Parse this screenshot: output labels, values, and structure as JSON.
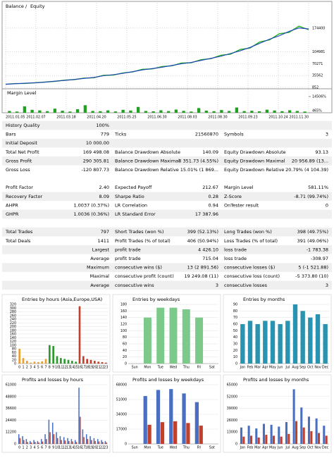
{
  "legend_separator": "/",
  "chart_data": [
    {
      "type": "line",
      "series": [
        {
          "name": "Balance",
          "color": "#1f3fbf",
          "values": [
            10000,
            11500,
            13000,
            14000,
            16000,
            19000,
            21000,
            24000,
            27000,
            30000,
            35000,
            38000,
            42000,
            47000,
            52000,
            56000,
            60000,
            65000,
            70000,
            74000,
            80000,
            86000,
            92000,
            100000,
            108000,
            118000,
            130000,
            142000,
            152000,
            165000,
            175000,
            172000
          ]
        },
        {
          "name": "Equity",
          "color": "#22b022",
          "values": [
            10000,
            12000,
            12500,
            14500,
            16500,
            18500,
            22000,
            23500,
            28000,
            29000,
            36000,
            37000,
            43000,
            46000,
            54000,
            55000,
            62000,
            64000,
            72000,
            73000,
            82000,
            85000,
            95000,
            98000,
            112000,
            116000,
            134000,
            140000,
            158000,
            162000,
            180000,
            170000
          ]
        }
      ],
      "ylim": [
        852,
        228000
      ],
      "yticks": [
        852,
        35562,
        70271,
        104981,
        174400
      ],
      "x_labels": [
        "2011.01.05",
        "2011.02.07",
        "2011.03.18",
        "2011.04.20",
        "2011.05.25",
        "2011.06.30",
        "2011.08.03",
        "2011.08.30",
        "2011.09.23",
        "2011.10.24",
        "2011.11.30"
      ],
      "grid": true
    },
    {
      "type": "bar",
      "title": "Margin Level",
      "color": "#22a022",
      "ylim": [
        465,
        14506
      ],
      "yticks": [
        {
          "value": 14506,
          "label": "14506%"
        },
        {
          "value": 465,
          "label": "465%"
        }
      ],
      "values": [
        2000,
        1500,
        6000,
        3000,
        2500,
        1800,
        4000,
        2200,
        1500,
        3500,
        7000,
        2000,
        1800,
        2500,
        1600,
        3000,
        2400,
        5500,
        2000,
        1700,
        2600,
        1900,
        3200,
        2100,
        1500,
        4500,
        2300,
        1800,
        2800,
        2000,
        5000,
        1900,
        2200,
        1700,
        3100,
        2400,
        1800,
        2600,
        2000,
        1500
      ]
    },
    {
      "type": "bar",
      "title": "Entries by hours (Asia,Europe,USA)",
      "ylim": [
        0,
        320
      ],
      "yticks": [
        0,
        20,
        40,
        60,
        80,
        100,
        120,
        140,
        160,
        180,
        200,
        220,
        240,
        260,
        280,
        300,
        320
      ],
      "categories": [
        "0",
        "1",
        "2",
        "3",
        "4",
        "5",
        "6",
        "7",
        "8",
        "9",
        "10",
        "11",
        "12",
        "13",
        "14",
        "15",
        "16",
        "17",
        "18",
        "19",
        "20",
        "21",
        "22",
        "23"
      ],
      "values": [
        80,
        30,
        15,
        5,
        10,
        8,
        12,
        25,
        100,
        95,
        40,
        30,
        25,
        20,
        15,
        10,
        310,
        40,
        25,
        20,
        15,
        10,
        8,
        5
      ],
      "bar_colors": [
        "#e8a030",
        "#e8a030",
        "#e8a030",
        "#e8a030",
        "#e8a030",
        "#e8a030",
        "#e8a030",
        "#e8a030",
        "#2e9a2e",
        "#2e9a2e",
        "#2e9a2e",
        "#2e9a2e",
        "#2e9a2e",
        "#2e9a2e",
        "#2e9a2e",
        "#2e9a2e",
        "#c0402e",
        "#c0402e",
        "#c0402e",
        "#c0402e",
        "#c0402e",
        "#c0402e",
        "#c0402e",
        "#c0402e"
      ]
    },
    {
      "type": "bar",
      "title": "Entries by weekdays",
      "color": "#7cc98a",
      "ylim": [
        0,
        180
      ],
      "yticks": [
        0,
        20,
        40,
        60,
        80,
        100,
        120,
        140,
        160,
        180
      ],
      "categories": [
        "Sun",
        "Mon",
        "Tue",
        "Wed",
        "Thu",
        "Fri",
        "Sat"
      ],
      "values": [
        0,
        140,
        170,
        170,
        165,
        140,
        0
      ]
    },
    {
      "type": "bar",
      "title": "Entries by months",
      "color": "#2a93b0",
      "ylim": [
        0,
        90
      ],
      "yticks": [
        0,
        10,
        20,
        30,
        40,
        50,
        60,
        70,
        80,
        90
      ],
      "categories": [
        "Jan",
        "Feb",
        "Mar",
        "Apr",
        "May",
        "Jun",
        "Jul",
        "Aug",
        "Sep",
        "Oct",
        "Nov",
        "Dec"
      ],
      "values": [
        60,
        65,
        60,
        65,
        65,
        60,
        65,
        90,
        80,
        70,
        75,
        60
      ]
    },
    {
      "type": "bar",
      "title": "Profits and losses by hours",
      "ylim": [
        0,
        61000
      ],
      "yticks": [
        0,
        12200,
        24400,
        36600,
        48800,
        61000
      ],
      "categories": [
        "0",
        "1",
        "2",
        "3",
        "4",
        "5",
        "6",
        "7",
        "8",
        "9",
        "10",
        "11",
        "12",
        "13",
        "14",
        "15",
        "16",
        "17",
        "18",
        "19",
        "20",
        "21",
        "22",
        "23"
      ],
      "series": [
        {
          "color": "#4a6fc0",
          "values": [
            10000,
            8000,
            5000,
            3000,
            4000,
            3000,
            5000,
            10000,
            25000,
            22000,
            12000,
            8000,
            7000,
            6000,
            5000,
            4000,
            58000,
            15000,
            10000,
            8000,
            6000,
            5000,
            4000,
            3000
          ]
        },
        {
          "color": "#c0402e",
          "values": [
            6000,
            4000,
            2000,
            1500,
            2000,
            1500,
            2500,
            5000,
            12000,
            10000,
            6000,
            4000,
            3500,
            3000,
            2500,
            2000,
            28000,
            7000,
            5000,
            4000,
            3000,
            2500,
            2000,
            1500
          ]
        }
      ]
    },
    {
      "type": "bar",
      "title": "Profits and losses by weekdays",
      "ylim": [
        0,
        68000
      ],
      "yticks": [
        0,
        17000,
        34000,
        51000,
        68000
      ],
      "categories": [
        "Sun",
        "Mon",
        "Tue",
        "Wed",
        "Thu",
        "Fri",
        "Sat"
      ],
      "series": [
        {
          "color": "#4a6fc0",
          "values": [
            0,
            55000,
            62000,
            63000,
            58000,
            48000,
            0
          ]
        },
        {
          "color": "#c0402e",
          "values": [
            0,
            22000,
            25000,
            26000,
            24000,
            21000,
            0
          ]
        }
      ]
    },
    {
      "type": "bar",
      "title": "Profits and losses by months",
      "ylim": [
        0,
        65000
      ],
      "yticks": [
        0,
        13000,
        26000,
        39000,
        52000,
        65000
      ],
      "categories": [
        "Jan",
        "Feb",
        "Mar",
        "Apr",
        "May",
        "Jun",
        "Jul",
        "Aug",
        "Sep",
        "Oct",
        "Nov",
        "Dec"
      ],
      "series": [
        {
          "color": "#4a6fc0",
          "values": [
            18000,
            20000,
            17000,
            22000,
            21000,
            19000,
            24000,
            60000,
            40000,
            30000,
            28000,
            20000
          ]
        },
        {
          "color": "#c0402e",
          "values": [
            8000,
            9000,
            7000,
            10000,
            9000,
            8000,
            11000,
            25000,
            18000,
            14000,
            12000,
            9000
          ]
        }
      ]
    }
  ],
  "report": {
    "sections": [
      [
        [
          "History Quality",
          "100%"
        ],
        [
          "Bars",
          "779",
          "Ticks",
          "21560870",
          "Symbols",
          "3"
        ],
        [
          "Initial Deposit",
          "10 000.00"
        ],
        [
          "Total Net Profit",
          "169 498.08",
          "Balance Drawdown Absolute",
          "140.09",
          "Equity Drawdown Absolute",
          "93.13"
        ],
        [
          "Gross Profit",
          "290 305.81",
          "Balance Drawdown Maximal",
          "8 351.73 (4.55%)",
          "Equity Drawdown Maximal",
          "20 956.89 (13..."
        ],
        [
          "Gross Loss",
          "-120 807.73",
          "Balance Drawdown Relative",
          "15.01% (1 869...",
          "Equity Drawdown Relative",
          "20.79% (4 104.39)"
        ]
      ],
      [
        [
          "Profit Factor",
          "2.40",
          "Expected Payoff",
          "212.67",
          "Margin Level",
          "581.11%"
        ],
        [
          "Recovery Factor",
          "8.09",
          "Sharpe Ratio",
          "0.28",
          "Z-Score",
          "-8.71 (99.74%)"
        ],
        [
          "AHPR",
          "1.0037 (0.37%)",
          "LR Correlation",
          "0.94",
          "OnTester result",
          "0"
        ],
        [
          "GHPR",
          "1.0036 (0.36%)",
          "LR Standard Error",
          "17 387.96"
        ]
      ],
      [
        [
          "Total Trades",
          "797",
          "Short Trades (won %)",
          "399 (52.13%)",
          "Long Trades (won %)",
          "398 (49.75%)"
        ],
        [
          "Total Deals",
          "1411",
          "Profit Trades (% of total)",
          "406 (50.94%)",
          "Loss Trades (% of total)",
          "391 (49.06%)"
        ],
        [
          null,
          "Largest",
          "profit trade",
          "4 426.10",
          "loss trade",
          "-1 783.38"
        ],
        [
          null,
          "Average",
          "profit trade",
          "715.04",
          "loss trade",
          "-308.97"
        ],
        [
          null,
          "Maximum",
          "consecutive wins ($)",
          "13 (2 891.56)",
          "consecutive losses ($)",
          "5 (-1 521.88)"
        ],
        [
          null,
          "Maximal",
          "consecutive profit (count)",
          "19 249.08 (11)",
          "consecutive loss (count)",
          "-5 373.80 (10)"
        ],
        [
          null,
          "Average",
          "consecutive wins",
          "3",
          "consecutive losses",
          "3"
        ]
      ]
    ]
  }
}
